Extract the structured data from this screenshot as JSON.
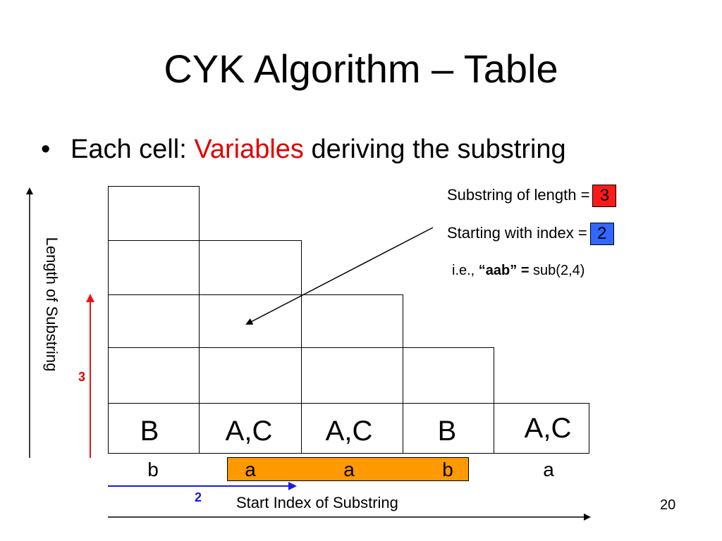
{
  "slide": {
    "title": "CYK Algorithm – Table",
    "bullet": {
      "prefix": "Each cell: ",
      "emphasis": "Variables",
      "suffix": " deriving the substring"
    },
    "page_number": "20"
  },
  "table": {
    "base_row": [
      "B",
      "A,C",
      "A,C",
      "B",
      "A,C"
    ],
    "input_string": [
      "b",
      "a",
      "a",
      "b",
      "a"
    ],
    "highlighted_input_indices": [
      2,
      3,
      4
    ]
  },
  "annotation": {
    "length_label": "Substring of length =",
    "length_value": "3",
    "index_label": "Starting with index =",
    "index_value": "2",
    "example_prefix": "i.e., ",
    "example_bold": "“aab” =",
    "example_suffix": " sub(2,4)"
  },
  "axes": {
    "vertical_label": "Length of Substring",
    "horizontal_label": "Start Index of Substring",
    "length_marker": "3",
    "index_marker": "2"
  },
  "colors": {
    "emphasis": "#e00000",
    "length_badge": "#ff1a1a",
    "index_badge": "#3366ff",
    "highlight": "#ff9900",
    "length_arrow": "#ee1111",
    "index_arrow": "#1a1ae0"
  }
}
